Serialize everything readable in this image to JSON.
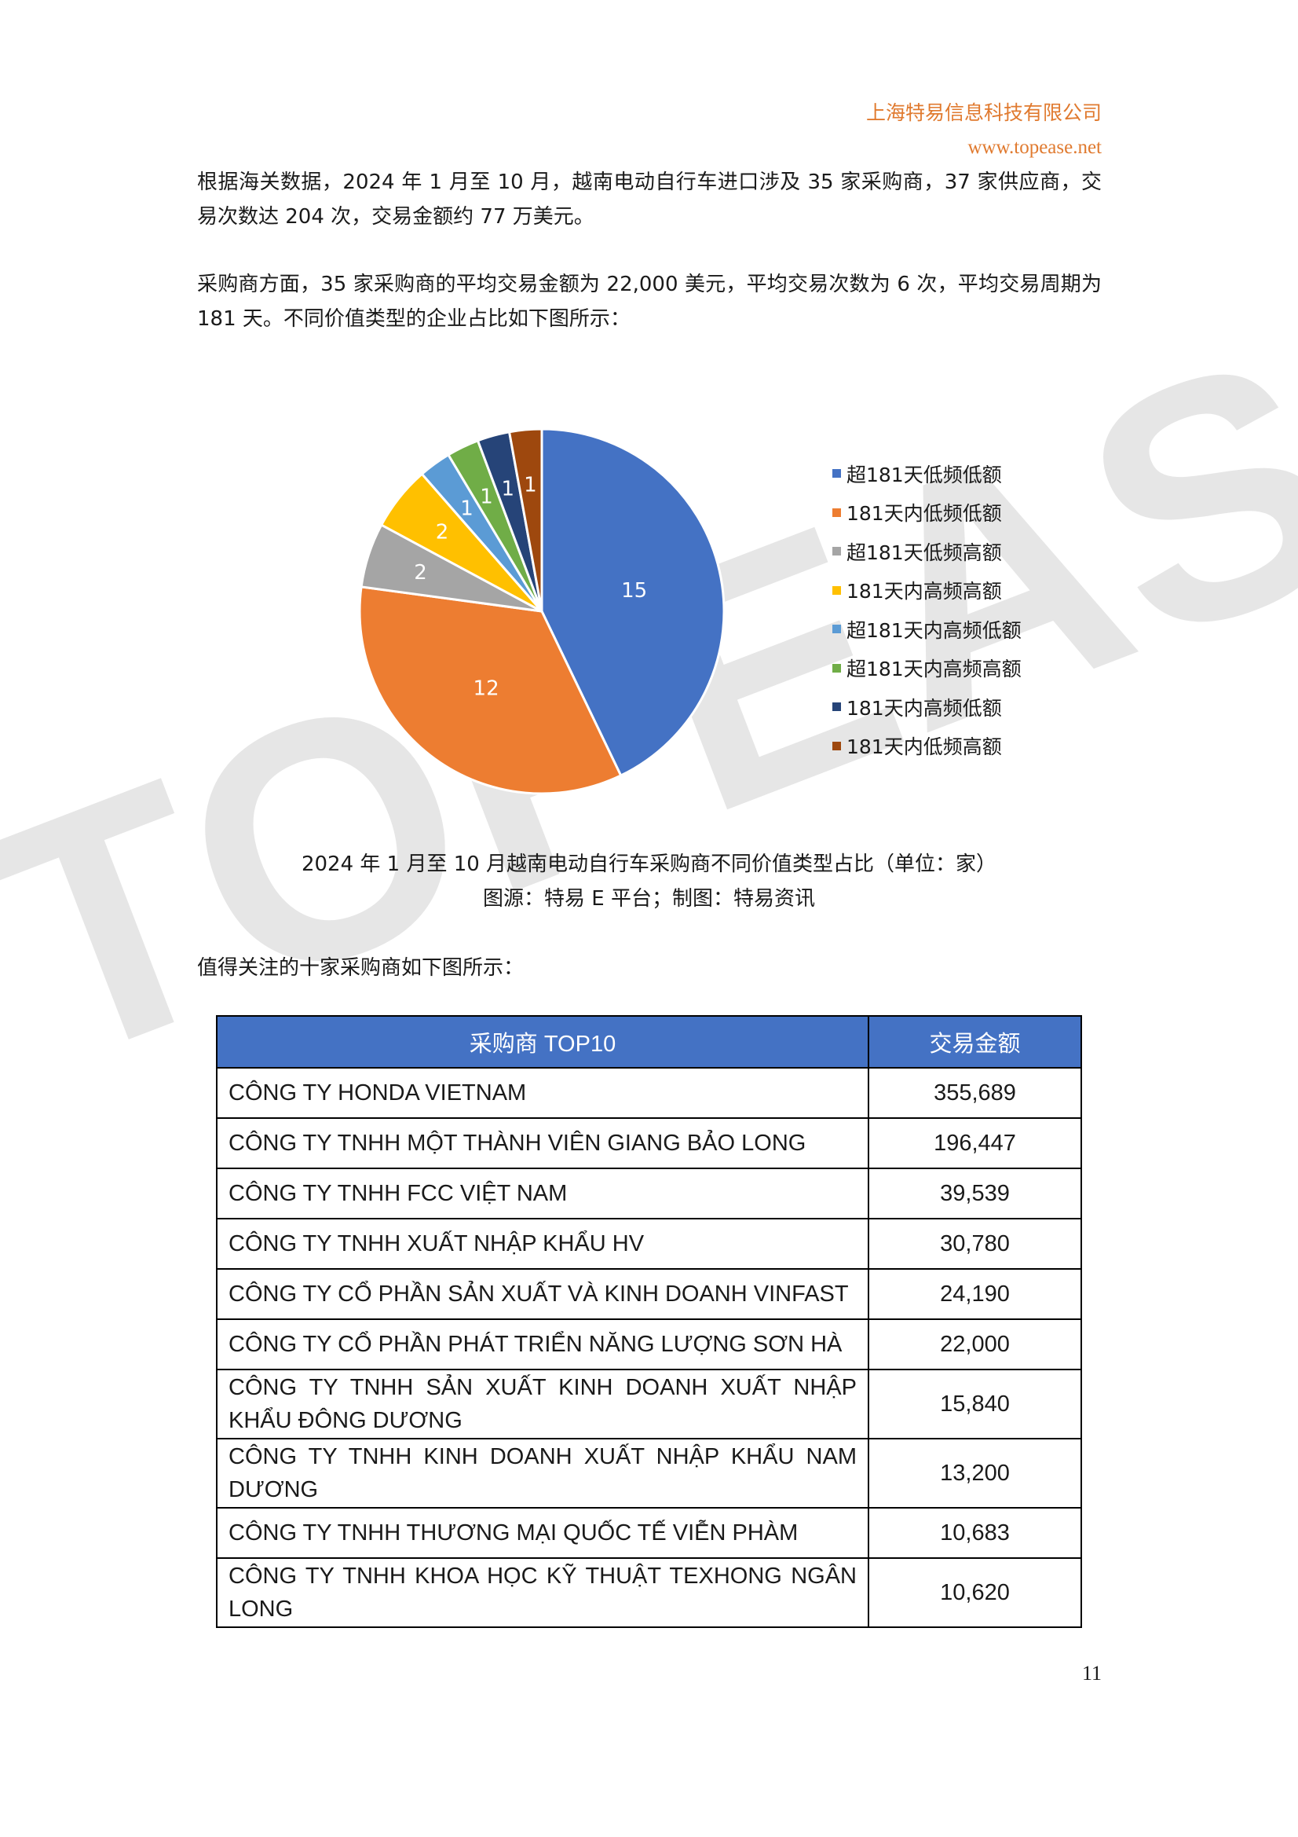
{
  "header": {
    "company": "上海特易信息科技有限公司",
    "url": "www.topease.net"
  },
  "watermark": "TOPEASE",
  "paragraphs": [
    "根据海关数据，2024 年 1 月至 10 月，越南电动自行车进口涉及 35 家采购商，37 家供应商，交易次数达 204 次，交易金额约 77 万美元。",
    "采购商方面，35 家采购商的平均交易金额为 22,000 美元，平均交易次数为 6 次，平均交易周期为 181 天。不同价值类型的企业占比如下图所示："
  ],
  "chart_data": {
    "type": "pie",
    "title": "",
    "categories": [
      "超181天低频低额",
      "181天内低频低额",
      "超181天低频高额",
      "181天内高频高额",
      "超181天内高频低额",
      "超181天内高频高额",
      "181天内高频低额",
      "181天内低频高额"
    ],
    "values": [
      15,
      12,
      2,
      2,
      1,
      1,
      1,
      1
    ],
    "colors": [
      "#4472c4",
      "#ed7d31",
      "#a5a5a5",
      "#ffc000",
      "#5b9bd5",
      "#70ad47",
      "#264478",
      "#9e480e"
    ],
    "legend_position": "right",
    "data_labels": true
  },
  "caption": {
    "line1": "2024 年 1 月至 10 月越南电动自行车采购商不同价值类型占比（单位：家）",
    "line2": "图源：特易 E 平台；制图：特易资讯"
  },
  "intro_table_text": "值得关注的十家采购商如下图所示：",
  "table": {
    "headers": [
      "采购商 TOP10",
      "交易金额"
    ],
    "rows": [
      [
        "CÔNG TY HONDA VIETNAM",
        "355,689"
      ],
      [
        "CÔNG TY TNHH MỘT THÀNH VIÊN GIANG BẢO LONG",
        "196,447"
      ],
      [
        "CÔNG TY TNHH FCC VIỆT NAM",
        "39,539"
      ],
      [
        "CÔNG TY TNHH XUẤT NHẬP KHẨU HV",
        "30,780"
      ],
      [
        "CÔNG TY CỔ PHẦN SẢN XUẤT VÀ KINH DOANH VINFAST",
        "24,190"
      ],
      [
        "CÔNG TY CỔ PHẦN PHÁT TRIỂN NĂNG LƯỢNG SƠN HÀ",
        "22,000"
      ],
      [
        "CÔNG TY TNHH SẢN XUẤT KINH DOANH XUẤT NHẬP KHẨU ĐÔNG DƯƠNG",
        "15,840"
      ],
      [
        "CÔNG TY TNHH KINH DOANH XUẤT NHẬP KHẨU NAM DƯƠNG",
        "13,200"
      ],
      [
        "CÔNG TY TNHH THƯƠNG MẠI QUỐC TẾ VIỄN PHÀM",
        "10,683"
      ],
      [
        "CÔNG TY TNHH KHOA HỌC KỸ THUẬT TEXHONG NGÂN LONG",
        "10,620"
      ]
    ]
  },
  "page_number": "11"
}
